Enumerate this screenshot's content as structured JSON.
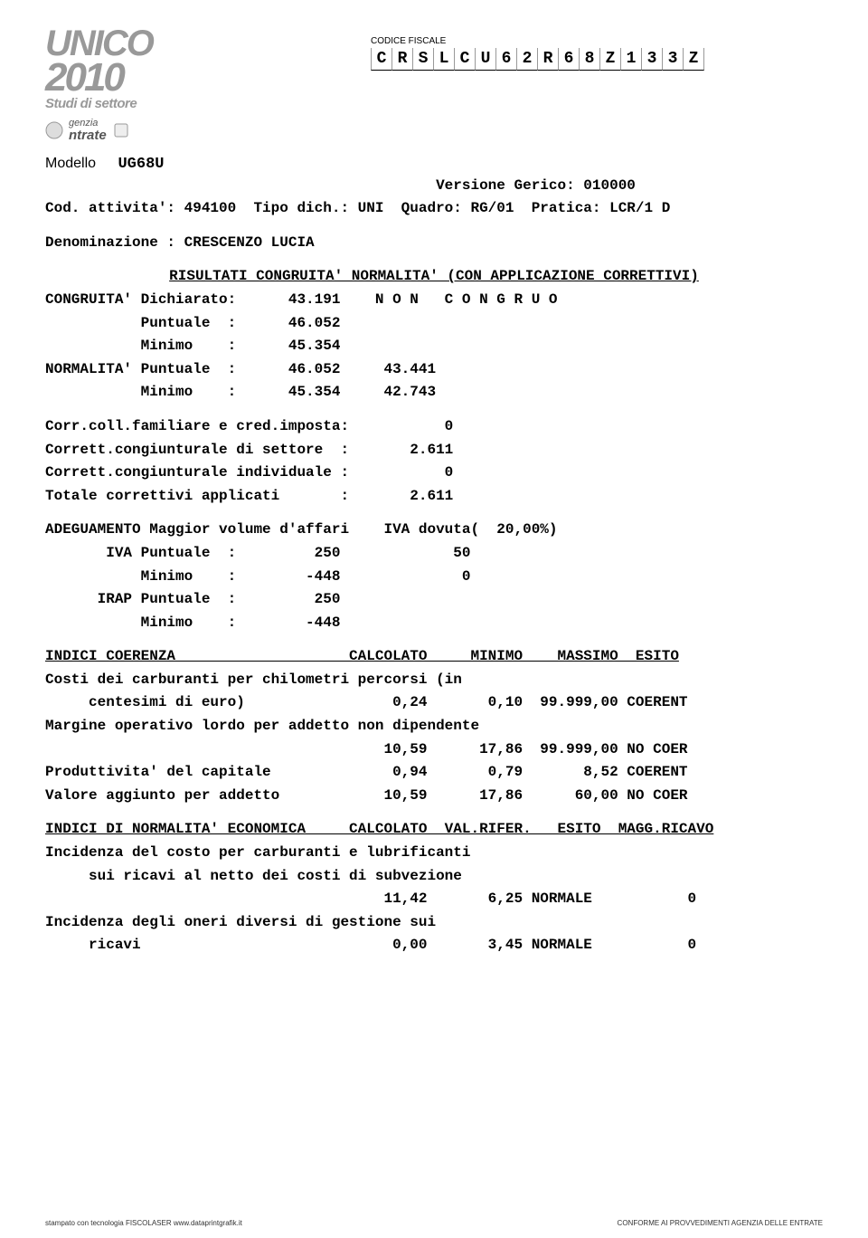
{
  "header": {
    "logo_title": "UNICO",
    "year": "2010",
    "subtitle": "Studi di settore",
    "agenzia_top": "genzia",
    "agenzia_bottom": "ntrate",
    "codice_fiscale_label": "CODICE FISCALE",
    "codice_fiscale_chars": [
      "C",
      "R",
      "S",
      "L",
      "C",
      "U",
      "6",
      "2",
      "R",
      "6",
      "8",
      "Z",
      "1",
      "3",
      "3",
      "Z"
    ],
    "modello_label": "Modello",
    "modello_value": "UG68U"
  },
  "info": {
    "versione": "                                             Versione Gerico: 010000",
    "line2": "Cod. attivita': 494100  Tipo dich.: UNI  Quadro: RG/01  Pratica: LCR/1 D",
    "denominazione": "Denominazione : CRESCENZO LUCIA"
  },
  "risultati": {
    "title": "RISULTATI CONGRUITA' NORMALITA' (CON APPLICAZIONE CORRETTIVI)",
    "l1": "CONGRUITA' Dichiarato:      43.191    N O N   C O N G R U O",
    "l2": "           Puntuale  :      46.052",
    "l3": "           Minimo    :      45.354",
    "l4": "NORMALITA' Puntuale  :      46.052     43.441",
    "l5": "           Minimo    :      45.354     42.743"
  },
  "correttivi": {
    "l1": "Corr.coll.familiare e cred.imposta:           0",
    "l2": "Corrett.congiunturale di settore  :       2.611",
    "l3": "Corrett.congiunturale individuale :           0",
    "l4": "Totale correttivi applicati       :       2.611"
  },
  "adeguamento": {
    "l1": "ADEGUAMENTO Maggior volume d'affari    IVA dovuta(  20,00%)",
    "l2": "       IVA Puntuale  :         250             50",
    "l3": "           Minimo    :        -448              0",
    "l4": "      IRAP Puntuale  :         250",
    "l5": "           Minimo    :        -448"
  },
  "coerenza": {
    "header": "INDICI COERENZA                    CALCOLATO     MINIMO    MASSIMO  ESITO",
    "l1": "Costi dei carburanti per chilometri percorsi (in",
    "l2": "     centesimi di euro)                 0,24       0,10  99.999,00 COERENT",
    "l3": "Margine operativo lordo per addetto non dipendente",
    "l4": "                                       10,59      17,86  99.999,00 NO COER",
    "l5": "Produttivita' del capitale              0,94       0,79       8,52 COERENT",
    "l6": "Valore aggiunto per addetto            10,59      17,86      60,00 NO COER"
  },
  "normalita": {
    "header": "INDICI DI NORMALITA' ECONOMICA     CALCOLATO  VAL.RIFER.   ESITO  MAGG.RICAVO",
    "l1": "Incidenza del costo per carburanti e lubrificanti",
    "l2": "     sui ricavi al netto dei costi di subvezione",
    "l3": "                                       11,42       6,25 NORMALE           0",
    "l4": "Incidenza degli oneri diversi di gestione sui",
    "l5": "     ricavi                             0,00       3,45 NORMALE           0"
  },
  "footer": {
    "left": "stampato con tecnologia  FISCOLASER  www.dataprintgrafik.it",
    "right": "CONFORME AI PROVVEDIMENTI AGENZIA DELLE ENTRATE"
  }
}
